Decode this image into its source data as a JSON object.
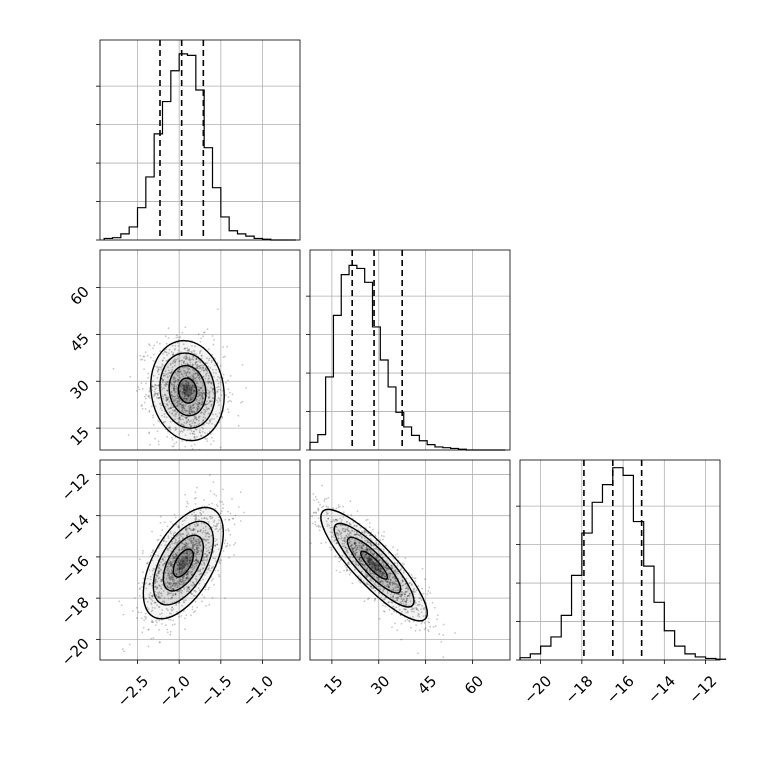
{
  "chart_data": {
    "type": "corner",
    "grid": true,
    "params": [
      {
        "range": [
          -2.95,
          -0.55
        ],
        "ticks": [
          {
            "v": -2.5,
            "label": "−2.5"
          },
          {
            "v": -2.0,
            "label": "−2.0"
          },
          {
            "v": -1.5,
            "label": "−1.5"
          },
          {
            "v": -1.0,
            "label": "−1.0"
          }
        ],
        "quantiles": [
          -2.23,
          -1.97,
          -1.71
        ],
        "histogram": {
          "start": -2.9,
          "width": 0.1,
          "counts": [
            2,
            3,
            8,
            17,
            42,
            82,
            138,
            180,
            220,
            242,
            240,
            195,
            120,
            68,
            30,
            12,
            8,
            5,
            2,
            1,
            0,
            0,
            0
          ]
        },
        "hist_yticks": [
          0,
          50,
          100,
          150,
          200
        ]
      },
      {
        "range": [
          8,
          72
        ],
        "ticks": [
          {
            "v": 15,
            "label": "15"
          },
          {
            "v": 30,
            "label": "30"
          },
          {
            "v": 45,
            "label": "45"
          },
          {
            "v": 60,
            "label": "60"
          }
        ],
        "quantiles": [
          21.5,
          28.5,
          37.5
        ],
        "histogram": {
          "start": 8,
          "width": 2.5,
          "counts": [
            10,
            20,
            95,
            175,
            228,
            240,
            236,
            218,
            160,
            117,
            82,
            49,
            30,
            19,
            12,
            7,
            4,
            3,
            2,
            1,
            0,
            0,
            0,
            0,
            0
          ]
        },
        "hist_yticks": [
          0,
          50,
          100,
          150,
          200
        ]
      },
      {
        "range": [
          -21,
          -11.3
        ],
        "ticks": [
          {
            "v": -20,
            "label": "−20"
          },
          {
            "v": -18,
            "label": "−18"
          },
          {
            "v": -16,
            "label": "−16"
          },
          {
            "v": -14,
            "label": "−14"
          },
          {
            "v": -12,
            "label": "−12"
          }
        ],
        "yticks": [
          {
            "v": -12,
            "label": "−12"
          },
          {
            "v": -14,
            "label": "−14"
          },
          {
            "v": -16,
            "label": "−16"
          },
          {
            "v": -18,
            "label": "−18"
          },
          {
            "v": -20,
            "label": "−20"
          }
        ],
        "quantiles": [
          -17.9,
          -16.5,
          -15.1
        ],
        "histogram": {
          "start": -21,
          "width": 0.5,
          "counts": [
            3,
            8,
            18,
            30,
            58,
            110,
            165,
            205,
            228,
            250,
            240,
            180,
            122,
            75,
            38,
            18,
            8,
            4,
            2,
            1
          ]
        },
        "hist_yticks": [
          0,
          50,
          100,
          150,
          200
        ]
      }
    ],
    "pairs": [
      {
        "row": 1,
        "col": 0,
        "center": [
          -1.9,
          27
        ],
        "sd": [
          0.22,
          8
        ],
        "corr": -0.1,
        "contour_sigmas": [
          0.5,
          1.0,
          1.5,
          2.0
        ]
      },
      {
        "row": 2,
        "col": 0,
        "center": [
          -1.95,
          -16.3
        ],
        "sd": [
          0.24,
          1.35
        ],
        "corr": 0.55,
        "contour_sigmas": [
          0.5,
          1.0,
          1.5,
          2.0
        ]
      },
      {
        "row": 2,
        "col": 1,
        "center": [
          28.5,
          -16.4
        ],
        "sd": [
          8.5,
          1.35
        ],
        "corr": -0.86,
        "contour_sigmas": [
          0.5,
          1.0,
          1.5,
          2.0
        ]
      }
    ]
  }
}
